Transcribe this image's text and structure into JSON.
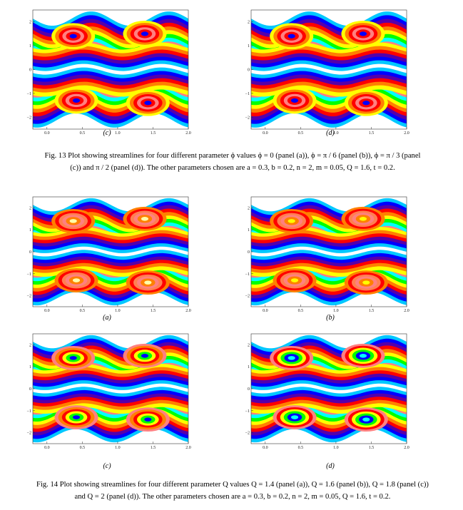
{
  "palette": [
    "#00c8ff",
    "#0000ff",
    "#5500aa",
    "#ff0000",
    "#ff7f50",
    "#ff8000",
    "#ffff00",
    "#00ff00",
    "#00ffff",
    "#ff8080",
    "#ffb0b0",
    "#ffffff"
  ],
  "panels": [
    {
      "id": "fig13-c",
      "label": "(c)",
      "variant": 1,
      "x_ticks": [
        "0.0",
        "0.5",
        "1.0",
        "1.5",
        "2.0"
      ],
      "y_ticks": [
        "2",
        "1",
        "0",
        "−1",
        "−2"
      ]
    },
    {
      "id": "fig13-d",
      "label": "(d)",
      "variant": 2,
      "x_ticks": [
        "0.0",
        "0.5",
        "1.0",
        "1.5",
        "2.0"
      ],
      "y_ticks": [
        "2",
        "1",
        "0",
        "−1",
        "−2"
      ]
    },
    {
      "id": "fig14-a",
      "label": "(a)",
      "variant": 3,
      "x_ticks": [
        "0.0",
        "0.5",
        "1.0",
        "1.5",
        "2.0"
      ],
      "y_ticks": [
        "2",
        "1",
        "0",
        "−1",
        "−2"
      ]
    },
    {
      "id": "fig14-b",
      "label": "(b)",
      "variant": 4,
      "x_ticks": [
        "0.0",
        "0.5",
        "1.0",
        "1.5",
        "2.0"
      ],
      "y_ticks": [
        "2",
        "1",
        "0",
        "−1",
        "−2"
      ]
    },
    {
      "id": "fig14-c",
      "label": "(c)",
      "variant": 5,
      "x_ticks": [
        "0.0",
        "0.5",
        "1.0",
        "1.5",
        "2.0"
      ],
      "y_ticks": [
        "2",
        "1",
        "0",
        "−1",
        "−2"
      ]
    },
    {
      "id": "fig14-d",
      "label": "(d)",
      "variant": 6,
      "x_ticks": [
        "0.0",
        "0.5",
        "1.0",
        "1.5",
        "2.0"
      ],
      "y_ticks": [
        "2",
        "1",
        "0",
        "−1",
        "−2"
      ]
    }
  ],
  "fig13": {
    "line1": "Fig. 13 Plot showing streamlines for four different parameter ϕ  values ϕ = 0  (panel (a)),  ϕ = π / 6  (panel (b)),  ϕ = π / 3  (panel",
    "line2": "(c))  and  π / 2  (panel (d)). The other parameters chosen are  a = 0.3,  b = 0.2,  n = 2,  m = 0.05,  Q = 1.6,  t = 0.2."
  },
  "fig14": {
    "line1": "Fig. 14 Plot showing streamlines for four different parameter  Q  values  Q = 1.4  (panel (a)),  Q = 1.6  (panel (b)),  Q = 1.8  (panel (c))",
    "line2": "and  Q = 2  (panel (d)). The other parameters chosen are  a = 0.3,  b = 0.2,  n = 2,  m = 0.05,  Q = 1.6,  t = 0.2."
  }
}
